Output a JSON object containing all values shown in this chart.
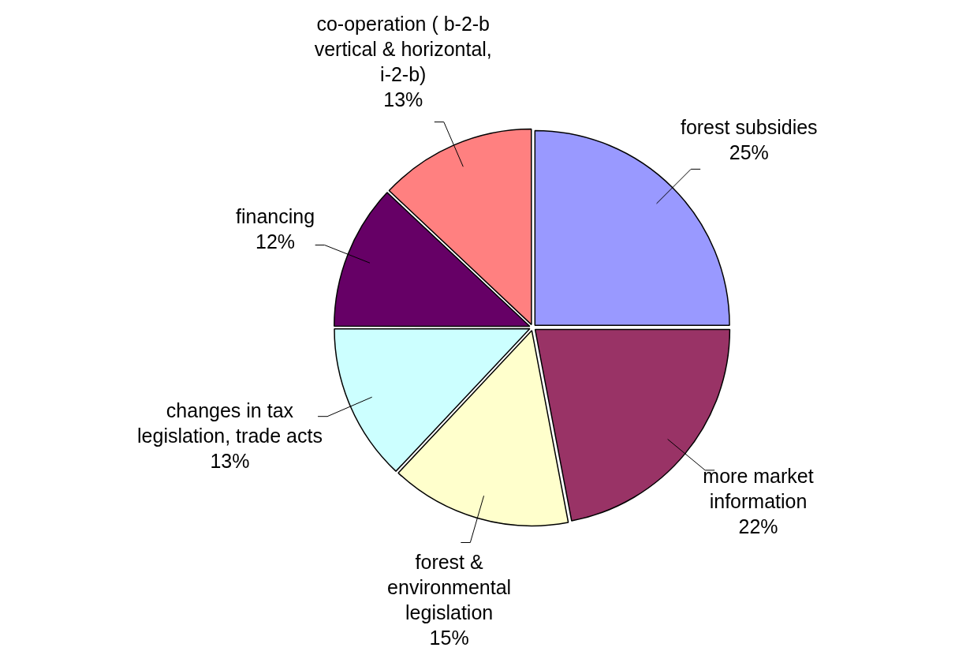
{
  "chart_data": {
    "type": "pie",
    "categories": [
      "forest subsidies",
      "more market information",
      "forest & environmental legislation",
      "changes in tax legislation, trade acts",
      "financing",
      "co-operation ( b-2-b vertical & horizontal, i-2-b)"
    ],
    "values": [
      25,
      22,
      15,
      13,
      12,
      13
    ],
    "colors": [
      "#9999ff",
      "#993366",
      "#ffffcc",
      "#ccffff",
      "#660066",
      "#ff8080"
    ],
    "value_labels": [
      "25%",
      "22%",
      "15%",
      "13%",
      "12%",
      "13%"
    ]
  }
}
